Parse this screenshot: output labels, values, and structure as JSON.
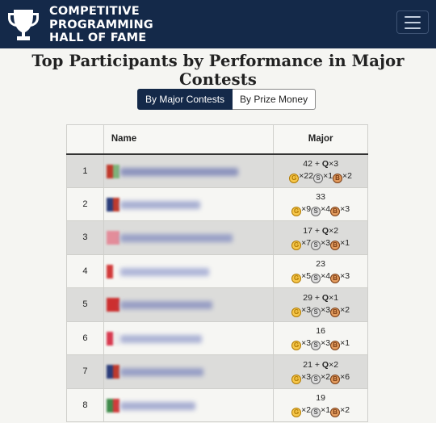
{
  "brand": {
    "line1": "COMPETITIVE",
    "line2": "PROGRAMMING",
    "line3": "HALL OF FAME"
  },
  "icons": {
    "brand": "trophy-icon",
    "menu": "hamburger-menu-icon",
    "gold": "gold-medal-icon",
    "silver": "silver-medal-icon",
    "bronze": "bronze-medal-icon"
  },
  "colors": {
    "navbar": "#142949",
    "gold": "#f6c64a",
    "silver": "#dedede",
    "bronze": "#e19a5d"
  },
  "page_title": "Top Participants by Performance in Major Contests",
  "tabs": {
    "active": "By Major Contests",
    "inactive": "By Prize Money"
  },
  "table": {
    "headers": {
      "rank": "",
      "name": "Name",
      "major": "Major"
    },
    "rows": [
      {
        "rank": "1",
        "major_count": "42",
        "q": "3",
        "gold": "×22",
        "silver": "×1",
        "bronze": "×2",
        "flag": [
          "#c0392b",
          "#7fb47a"
        ],
        "name_color": "#7d86b8",
        "name_len": 0.77
      },
      {
        "rank": "2",
        "major_count": "33",
        "q": "",
        "gold": "×9",
        "silver": "×4",
        "bronze": "×3",
        "flag": [
          "#2b3d7a",
          "#c0392b"
        ],
        "name_color": "#9aa3cc",
        "name_len": 0.52
      },
      {
        "rank": "3",
        "major_count": "17",
        "q": "2",
        "gold": "×7",
        "silver": "×3",
        "bronze": "×1",
        "flag": [
          "#e38d9a",
          "#e38d9a"
        ],
        "name_color": "#8d96c4",
        "name_len": 0.73
      },
      {
        "rank": "4",
        "major_count": "23",
        "q": "",
        "gold": "×5",
        "silver": "×4",
        "bronze": "×3",
        "flag": [
          "#d23a3a",
          "#f6f6f3"
        ],
        "name_color": "#a3abd4",
        "name_len": 0.58
      },
      {
        "rank": "5",
        "major_count": "29",
        "q": "1",
        "gold": "×3",
        "silver": "×3",
        "bronze": "×2",
        "flag": [
          "#cc2f2f",
          "#cc2f2f"
        ],
        "name_color": "#8c93c0",
        "name_len": 0.6
      },
      {
        "rank": "6",
        "major_count": "16",
        "q": "",
        "gold": "×3",
        "silver": "×3",
        "bronze": "×1",
        "flag": [
          "#d8394f",
          "#ededed"
        ],
        "name_color": "#a0a8d0",
        "name_len": 0.53
      },
      {
        "rank": "7",
        "major_count": "21",
        "q": "2",
        "gold": "×3",
        "silver": "×2",
        "bronze": "×6",
        "flag": [
          "#2b3d7a",
          "#c0392b"
        ],
        "name_color": "#8c94c2",
        "name_len": 0.54
      },
      {
        "rank": "8",
        "major_count": "19",
        "q": "",
        "gold": "×2",
        "silver": "×1",
        "bronze": "×2",
        "flag": [
          "#3f8a4a",
          "#d23a3a"
        ],
        "name_color": "#9aa2cc",
        "name_len": 0.49
      }
    ]
  }
}
